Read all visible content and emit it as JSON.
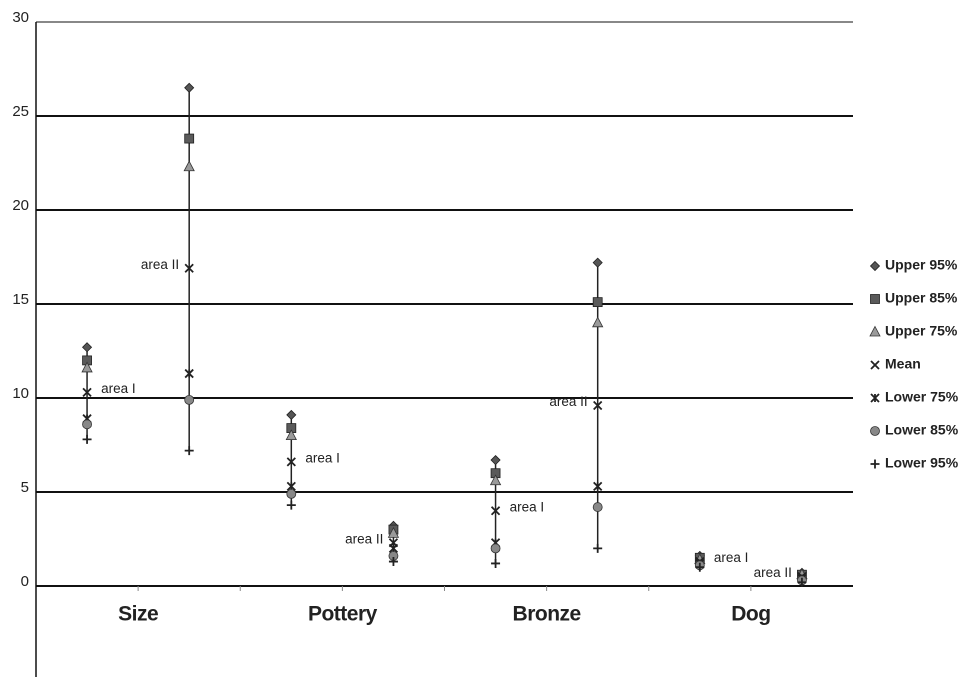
{
  "chart_data": {
    "type": "range-scatter",
    "groups": [
      "Size",
      "Pottery",
      "Bronze",
      "Dog"
    ],
    "categories": [
      "area I",
      "area II",
      "area I",
      "area II",
      "area I",
      "area II",
      "area I",
      "area II"
    ],
    "ylim": [
      0,
      30
    ],
    "yticks": [
      0,
      5,
      10,
      15,
      20,
      25,
      30
    ],
    "grid": true,
    "legend": "right",
    "series": [
      {
        "name": "Upper 95%",
        "marker": "diamond",
        "color": "#555555",
        "values": [
          12.7,
          26.5,
          9.1,
          3.2,
          6.7,
          17.2,
          1.6,
          0.7
        ]
      },
      {
        "name": "Upper 85%",
        "marker": "square",
        "color": "#5a5a5a",
        "values": [
          12.0,
          23.8,
          8.4,
          3.0,
          6.0,
          15.1,
          1.5,
          0.6
        ]
      },
      {
        "name": "Upper 75%",
        "marker": "triangle",
        "color": "#9a9a9a",
        "values": [
          11.6,
          22.3,
          8.0,
          2.8,
          5.6,
          14.0,
          1.4,
          0.6
        ]
      },
      {
        "name": "Mean",
        "marker": "x",
        "color": "#222222",
        "values": [
          10.3,
          16.9,
          6.6,
          2.3,
          4.0,
          9.6,
          1.3,
          0.5
        ]
      },
      {
        "name": "Lower 75%",
        "marker": "star",
        "color": "#222222",
        "values": [
          8.9,
          11.3,
          5.3,
          2.0,
          2.3,
          5.3,
          1.2,
          0.4
        ]
      },
      {
        "name": "Lower 85%",
        "marker": "circle",
        "color": "#888888",
        "values": [
          8.6,
          9.9,
          4.9,
          1.6,
          2.0,
          4.2,
          1.1,
          0.3
        ]
      },
      {
        "name": "Lower 95%",
        "marker": "plus",
        "color": "#222222",
        "values": [
          7.8,
          7.2,
          4.3,
          1.3,
          1.2,
          2.0,
          1.0,
          0.2
        ]
      }
    ]
  }
}
